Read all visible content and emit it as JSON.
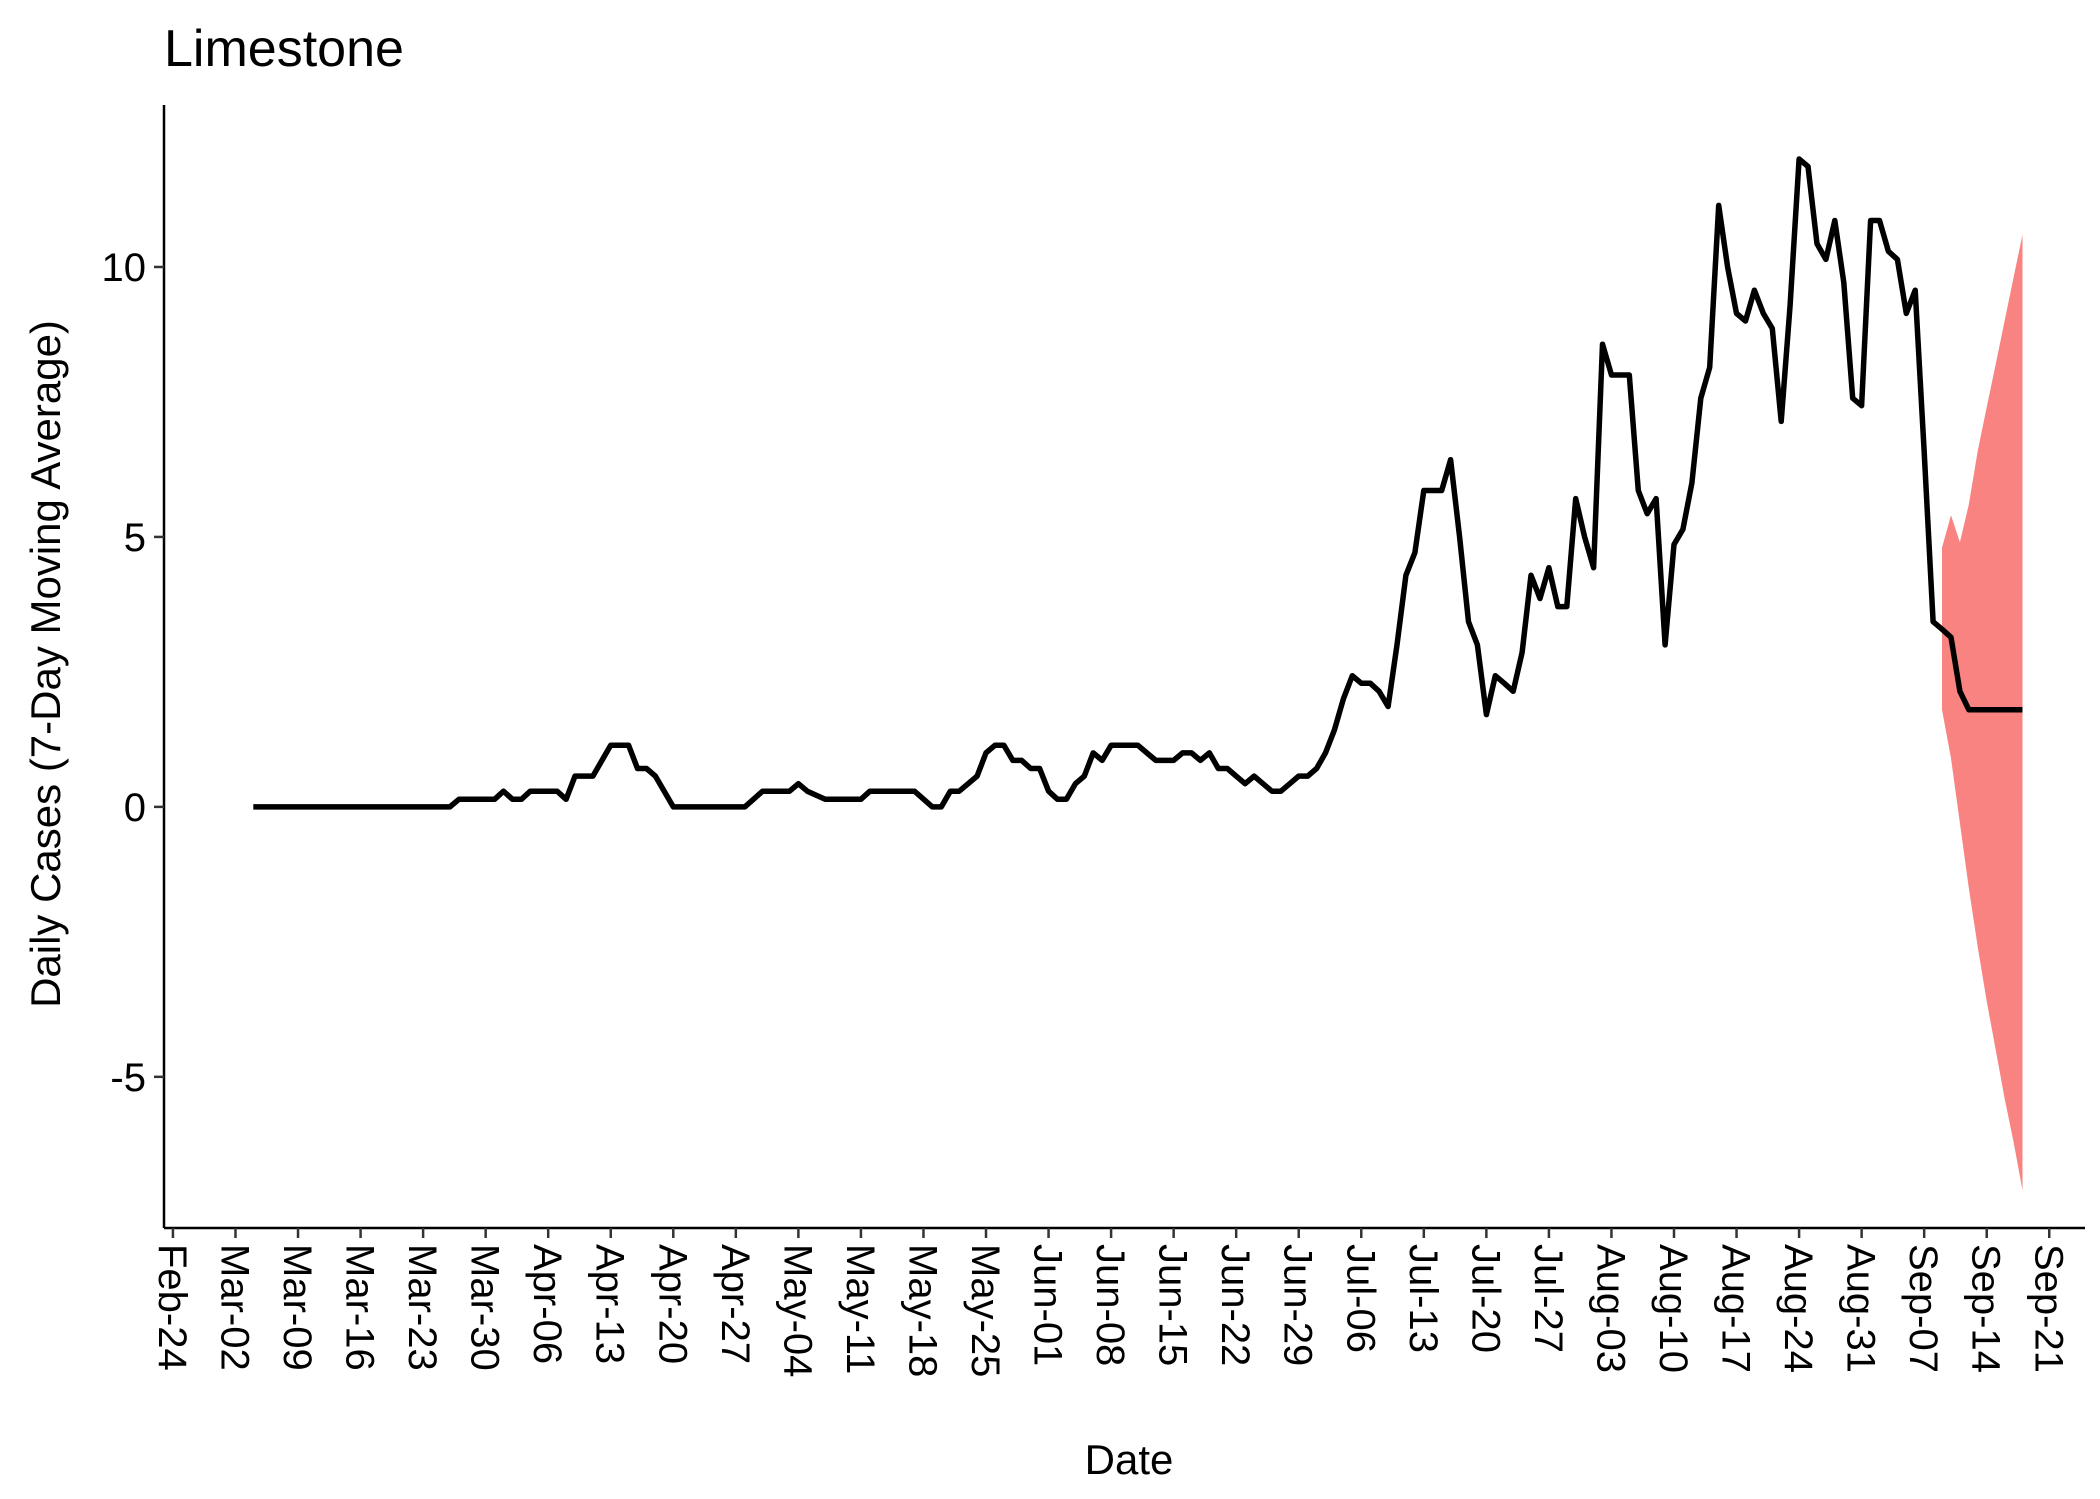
{
  "chart_data": {
    "type": "line",
    "title": "Limestone",
    "xlabel": "Date",
    "ylabel": "Daily Cases (7-Day Moving Average)",
    "ylim": [
      -7.8,
      13
    ],
    "xlim": [
      "2020-02-23",
      "2020-09-25"
    ],
    "y_ticks": [
      -5,
      0,
      5,
      10
    ],
    "x_tick_labels": [
      "Feb-24",
      "Mar-02",
      "Mar-09",
      "Mar-16",
      "Mar-23",
      "Mar-30",
      "Apr-06",
      "Apr-13",
      "Apr-20",
      "Apr-27",
      "May-04",
      "May-11",
      "May-18",
      "May-25",
      "Jun-01",
      "Jun-08",
      "Jun-15",
      "Jun-22",
      "Jun-29",
      "Jul-06",
      "Jul-13",
      "Jul-20",
      "Jul-27",
      "Aug-03",
      "Aug-10",
      "Aug-17",
      "Aug-24",
      "Aug-31",
      "Sep-07",
      "Sep-14",
      "Sep-21"
    ],
    "x_tick_dates": [
      "2020-02-24",
      "2020-03-02",
      "2020-03-09",
      "2020-03-16",
      "2020-03-23",
      "2020-03-30",
      "2020-04-06",
      "2020-04-13",
      "2020-04-20",
      "2020-04-27",
      "2020-05-04",
      "2020-05-11",
      "2020-05-18",
      "2020-05-25",
      "2020-06-01",
      "2020-06-08",
      "2020-06-15",
      "2020-06-22",
      "2020-06-29",
      "2020-07-06",
      "2020-07-13",
      "2020-07-20",
      "2020-07-27",
      "2020-08-03",
      "2020-08-10",
      "2020-08-17",
      "2020-08-24",
      "2020-08-31",
      "2020-09-07",
      "2020-09-14",
      "2020-09-21"
    ],
    "grid": false,
    "legend": "none",
    "colors": {
      "line": "#000000",
      "band": "#f88380"
    },
    "series": [
      {
        "points": [
          [
            "2020-03-04",
            0
          ],
          [
            "2020-03-26",
            0
          ],
          [
            "2020-03-27",
            0.14
          ],
          [
            "2020-03-31",
            0.14
          ],
          [
            "2020-04-01",
            0.29
          ],
          [
            "2020-04-02",
            0.14
          ],
          [
            "2020-04-03",
            0.14
          ],
          [
            "2020-04-04",
            0.29
          ],
          [
            "2020-04-07",
            0.29
          ],
          [
            "2020-04-08",
            0.14
          ],
          [
            "2020-04-09",
            0.57
          ],
          [
            "2020-04-11",
            0.57
          ],
          [
            "2020-04-13",
            1.14
          ],
          [
            "2020-04-15",
            1.14
          ],
          [
            "2020-04-16",
            0.71
          ],
          [
            "2020-04-17",
            0.71
          ],
          [
            "2020-04-18",
            0.57
          ],
          [
            "2020-04-20",
            0
          ],
          [
            "2020-04-28",
            0
          ],
          [
            "2020-04-30",
            0.29
          ],
          [
            "2020-05-03",
            0.29
          ],
          [
            "2020-05-04",
            0.43
          ],
          [
            "2020-05-05",
            0.29
          ],
          [
            "2020-05-07",
            0.14
          ],
          [
            "2020-05-11",
            0.14
          ],
          [
            "2020-05-12",
            0.29
          ],
          [
            "2020-05-17",
            0.29
          ],
          [
            "2020-05-19",
            0
          ],
          [
            "2020-05-20",
            0
          ],
          [
            "2020-05-21",
            0.29
          ],
          [
            "2020-05-22",
            0.29
          ],
          [
            "2020-05-24",
            0.57
          ],
          [
            "2020-05-25",
            1.0
          ],
          [
            "2020-05-26",
            1.14
          ],
          [
            "2020-05-27",
            1.14
          ],
          [
            "2020-05-28",
            0.86
          ],
          [
            "2020-05-29",
            0.86
          ],
          [
            "2020-05-30",
            0.71
          ],
          [
            "2020-05-31",
            0.71
          ],
          [
            "2020-06-01",
            0.29
          ],
          [
            "2020-06-02",
            0.14
          ],
          [
            "2020-06-03",
            0.14
          ],
          [
            "2020-06-04",
            0.43
          ],
          [
            "2020-06-05",
            0.57
          ],
          [
            "2020-06-06",
            1.0
          ],
          [
            "2020-06-07",
            0.86
          ],
          [
            "2020-06-08",
            1.14
          ],
          [
            "2020-06-11",
            1.14
          ],
          [
            "2020-06-12",
            1.0
          ],
          [
            "2020-06-13",
            0.86
          ],
          [
            "2020-06-15",
            0.86
          ],
          [
            "2020-06-16",
            1.0
          ],
          [
            "2020-06-17",
            1.0
          ],
          [
            "2020-06-18",
            0.86
          ],
          [
            "2020-06-19",
            1.0
          ],
          [
            "2020-06-20",
            0.71
          ],
          [
            "2020-06-21",
            0.71
          ],
          [
            "2020-06-22",
            0.57
          ],
          [
            "2020-06-23",
            0.43
          ],
          [
            "2020-06-24",
            0.57
          ],
          [
            "2020-06-25",
            0.43
          ],
          [
            "2020-06-26",
            0.29
          ],
          [
            "2020-06-27",
            0.29
          ],
          [
            "2020-06-28",
            0.43
          ],
          [
            "2020-06-29",
            0.57
          ],
          [
            "2020-06-30",
            0.57
          ],
          [
            "2020-07-01",
            0.71
          ],
          [
            "2020-07-02",
            1.0
          ],
          [
            "2020-07-03",
            1.43
          ],
          [
            "2020-07-04",
            2.0
          ],
          [
            "2020-07-05",
            2.43
          ],
          [
            "2020-07-06",
            2.29
          ],
          [
            "2020-07-07",
            2.29
          ],
          [
            "2020-07-08",
            2.14
          ],
          [
            "2020-07-09",
            1.86
          ],
          [
            "2020-07-10",
            3.0
          ],
          [
            "2020-07-11",
            4.29
          ],
          [
            "2020-07-12",
            4.71
          ],
          [
            "2020-07-13",
            5.86
          ],
          [
            "2020-07-15",
            5.86
          ],
          [
            "2020-07-16",
            6.43
          ],
          [
            "2020-07-17",
            5.0
          ],
          [
            "2020-07-18",
            3.43
          ],
          [
            "2020-07-19",
            3.0
          ],
          [
            "2020-07-20",
            1.71
          ],
          [
            "2020-07-21",
            2.43
          ],
          [
            "2020-07-22",
            2.29
          ],
          [
            "2020-07-23",
            2.14
          ],
          [
            "2020-07-24",
            2.86
          ],
          [
            "2020-07-25",
            4.29
          ],
          [
            "2020-07-26",
            3.86
          ],
          [
            "2020-07-27",
            4.43
          ],
          [
            "2020-07-28",
            3.71
          ],
          [
            "2020-07-29",
            3.71
          ],
          [
            "2020-07-30",
            5.71
          ],
          [
            "2020-07-31",
            5.0
          ],
          [
            "2020-08-01",
            4.43
          ],
          [
            "2020-08-02",
            8.57
          ],
          [
            "2020-08-03",
            8.0
          ],
          [
            "2020-08-05",
            8.0
          ],
          [
            "2020-08-06",
            5.86
          ],
          [
            "2020-08-07",
            5.43
          ],
          [
            "2020-08-08",
            5.71
          ],
          [
            "2020-08-09",
            3.0
          ],
          [
            "2020-08-10",
            4.86
          ],
          [
            "2020-08-11",
            5.14
          ],
          [
            "2020-08-12",
            6.0
          ],
          [
            "2020-08-13",
            7.57
          ],
          [
            "2020-08-14",
            8.14
          ],
          [
            "2020-08-15",
            11.14
          ],
          [
            "2020-08-16",
            10.0
          ],
          [
            "2020-08-17",
            9.14
          ],
          [
            "2020-08-18",
            9.0
          ],
          [
            "2020-08-19",
            9.57
          ],
          [
            "2020-08-20",
            9.14
          ],
          [
            "2020-08-21",
            8.86
          ],
          [
            "2020-08-22",
            7.14
          ],
          [
            "2020-08-23",
            9.29
          ],
          [
            "2020-08-24",
            12.0
          ],
          [
            "2020-08-25",
            11.86
          ],
          [
            "2020-08-26",
            10.43
          ],
          [
            "2020-08-27",
            10.14
          ],
          [
            "2020-08-28",
            10.86
          ],
          [
            "2020-08-29",
            9.71
          ],
          [
            "2020-08-30",
            7.57
          ],
          [
            "2020-08-31",
            7.43
          ],
          [
            "2020-09-01",
            10.86
          ],
          [
            "2020-09-02",
            10.86
          ],
          [
            "2020-09-03",
            10.29
          ],
          [
            "2020-09-04",
            10.14
          ],
          [
            "2020-09-05",
            9.14
          ],
          [
            "2020-09-06",
            9.57
          ],
          [
            "2020-09-07",
            6.57
          ],
          [
            "2020-09-08",
            3.43
          ],
          [
            "2020-09-09",
            3.29
          ],
          [
            "2020-09-10",
            3.14
          ],
          [
            "2020-09-11",
            2.14
          ],
          [
            "2020-09-12",
            1.8
          ],
          [
            "2020-09-18",
            1.8
          ]
        ]
      }
    ],
    "band": [
      [
        "2020-09-09",
        1.8,
        4.8
      ],
      [
        "2020-09-10",
        0.9,
        5.4
      ],
      [
        "2020-09-11",
        -0.3,
        4.9
      ],
      [
        "2020-09-12",
        -1.5,
        5.6
      ],
      [
        "2020-09-13",
        -2.6,
        6.6
      ],
      [
        "2020-09-14",
        -3.6,
        7.4
      ],
      [
        "2020-09-15",
        -4.5,
        8.2
      ],
      [
        "2020-09-16",
        -5.4,
        9.0
      ],
      [
        "2020-09-17",
        -6.2,
        9.8
      ],
      [
        "2020-09-18",
        -7.1,
        10.6
      ]
    ]
  }
}
